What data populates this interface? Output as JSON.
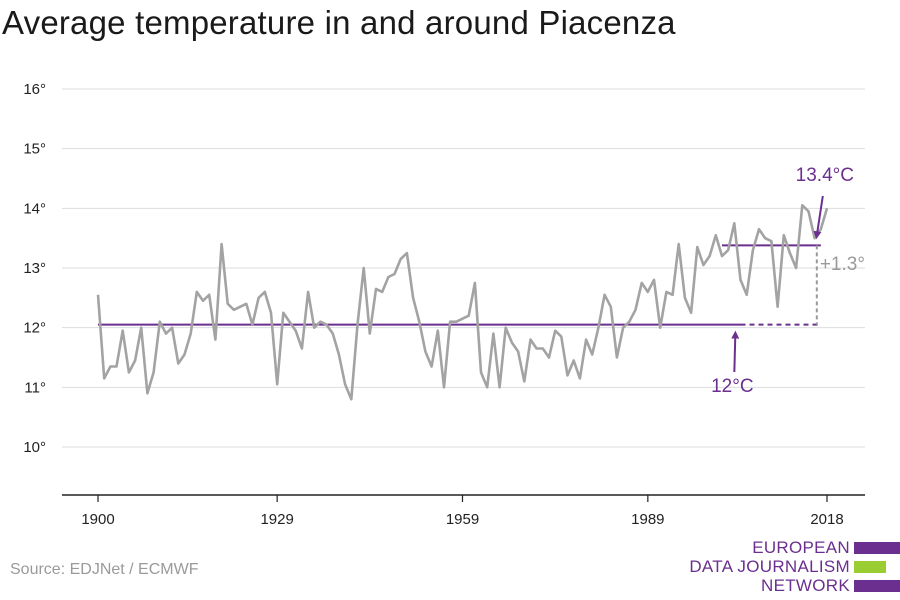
{
  "title": "Average temperature in and around Piacenza",
  "source": "Source: EDJNet / ECMWF",
  "logo": {
    "lines": [
      "EUROPEAN",
      "DATA JOURNALISM",
      "NETWORK"
    ],
    "colors": [
      "#6b2f8f",
      "#9acd32",
      "#6b2f8f"
    ]
  },
  "colors": {
    "series": "#a3a3a3",
    "reference": "#6b2f8f",
    "difference": "#9a9a9a",
    "grid": "#dddddd",
    "axis": "#222222"
  },
  "chart_data": {
    "type": "line",
    "title": "Average temperature in and around Piacenza",
    "xlim": [
      1900,
      2018
    ],
    "ylim": [
      9.3,
      16.3
    ],
    "x_ticks": [
      1900,
      1929,
      1959,
      1989,
      2018
    ],
    "y_ticks": [
      10,
      11,
      12,
      13,
      14,
      15,
      16
    ],
    "y_tick_labels": [
      "10°",
      "11°",
      "12°",
      "13°",
      "14°",
      "15°",
      "16°"
    ],
    "grid": true,
    "series": [
      {
        "x": [
          1900,
          1901,
          1902,
          1903,
          1904,
          1905,
          1906,
          1907,
          1908,
          1909,
          1910,
          1911,
          1912,
          1913,
          1914,
          1915,
          1916,
          1917,
          1918,
          1919,
          1920,
          1921,
          1922,
          1923,
          1924,
          1925,
          1926,
          1927,
          1928,
          1929,
          1930,
          1931,
          1932,
          1933,
          1934,
          1935,
          1936,
          1937,
          1938,
          1939,
          1940,
          1941,
          1942,
          1943,
          1944,
          1945,
          1946,
          1947,
          1948,
          1949,
          1950,
          1951,
          1952,
          1953,
          1954,
          1955,
          1956,
          1957,
          1958,
          1959,
          1960,
          1961,
          1962,
          1963,
          1964,
          1965,
          1966,
          1967,
          1968,
          1969,
          1970,
          1971,
          1972,
          1973,
          1974,
          1975,
          1976,
          1977,
          1978,
          1979,
          1980,
          1981,
          1982,
          1983,
          1984,
          1985,
          1986,
          1987,
          1988,
          1989,
          1990,
          1991,
          1992,
          1993,
          1994,
          1995,
          1996,
          1997,
          1998,
          1999,
          2000,
          2001,
          2002,
          2003,
          2004,
          2005,
          2006,
          2007,
          2008,
          2009,
          2010,
          2011,
          2012,
          2013,
          2014,
          2015,
          2016,
          2017,
          2018
        ],
        "values": [
          12.55,
          11.15,
          11.35,
          11.35,
          11.95,
          11.25,
          11.45,
          12.0,
          10.9,
          11.25,
          12.1,
          11.9,
          12.0,
          11.4,
          11.55,
          11.9,
          12.6,
          12.45,
          12.55,
          11.8,
          13.4,
          12.4,
          12.3,
          12.35,
          12.4,
          12.05,
          12.5,
          12.6,
          12.25,
          11.05,
          12.25,
          12.1,
          11.95,
          11.65,
          12.6,
          12.0,
          12.1,
          12.05,
          11.9,
          11.55,
          11.05,
          10.8,
          12.05,
          13.0,
          11.9,
          12.65,
          12.6,
          12.85,
          12.9,
          13.15,
          13.25,
          12.5,
          12.1,
          11.6,
          11.35,
          11.95,
          11.0,
          12.1,
          12.1,
          12.15,
          12.2,
          12.75,
          11.25,
          11.0,
          11.9,
          11.0,
          12.0,
          11.75,
          11.6,
          11.1,
          11.8,
          11.65,
          11.65,
          11.5,
          11.95,
          11.85,
          11.2,
          11.45,
          11.15,
          11.8,
          11.55,
          12.0,
          12.55,
          12.35,
          11.5,
          12.0,
          12.1,
          12.3,
          12.75,
          12.6,
          12.8,
          12.0,
          12.6,
          12.55,
          13.4,
          12.5,
          12.25,
          13.35,
          13.05,
          13.2,
          13.55,
          13.2,
          13.3,
          13.75,
          12.8,
          12.55,
          13.3,
          13.65,
          13.5,
          13.45,
          12.35,
          13.55,
          13.25,
          13.0,
          14.05,
          13.95,
          13.5,
          13.65,
          14.0
        ]
      }
    ],
    "reference_lines": [
      {
        "label": "12°C",
        "value": 12.05,
        "x_start": 1900,
        "x_end": 2004,
        "dashed_to": 2017
      },
      {
        "label": "13.4°C",
        "value": 13.38,
        "x_start": 2001,
        "x_end": 2017
      }
    ],
    "difference_label": "+1.3°",
    "difference_x": 2017
  }
}
